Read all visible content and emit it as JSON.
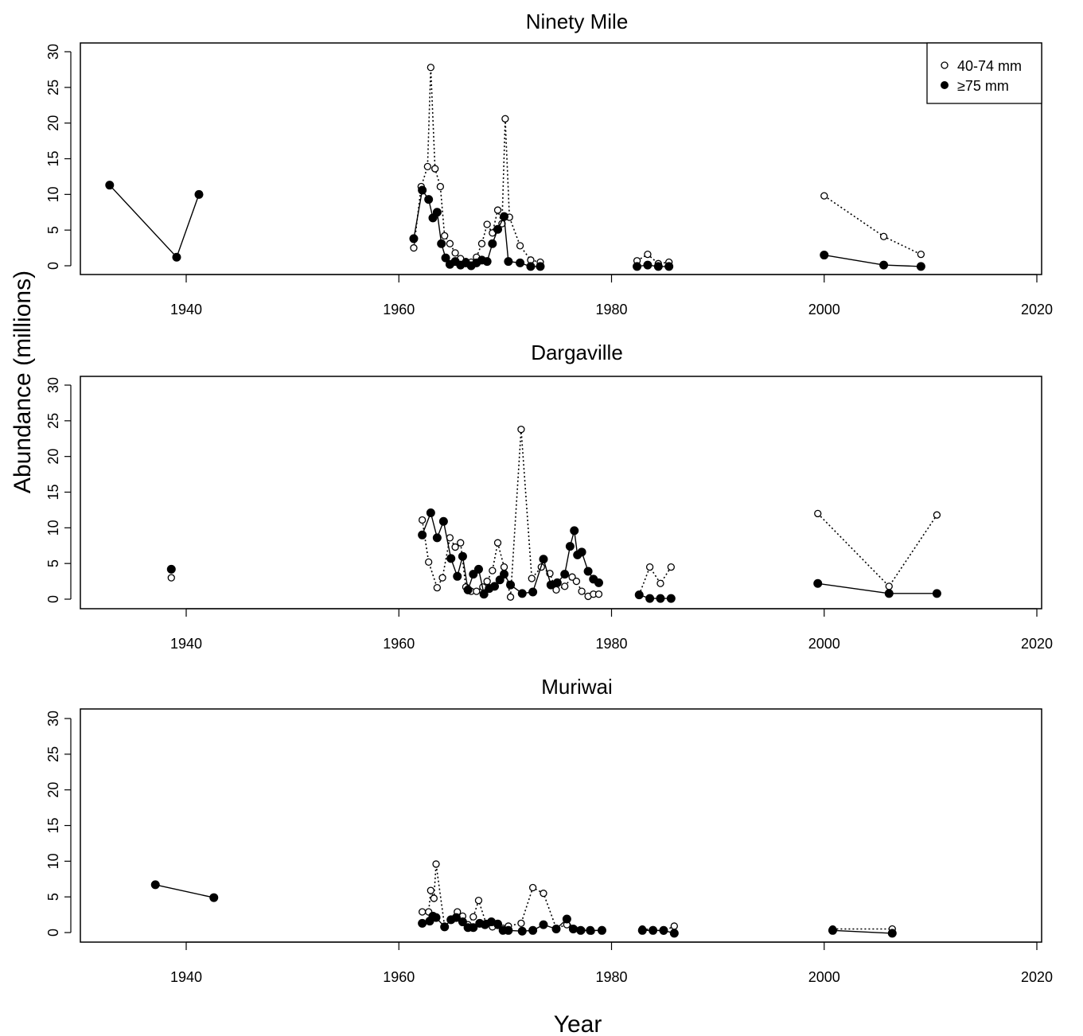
{
  "figure": {
    "xlabel": "Year",
    "ylabel": "Abundance (millions)",
    "legend": {
      "position": "top-right",
      "open_label": "40-74 mm",
      "filled_label": "≥75 mm"
    }
  },
  "chart_data": [
    {
      "type": "line",
      "title": "Ninety Mile",
      "xlim": [
        1930,
        2020
      ],
      "ylim": [
        0,
        30
      ],
      "xticks": [
        1940,
        1960,
        1980,
        2000,
        2020
      ],
      "yticks": [
        0,
        5,
        10,
        15,
        20,
        25,
        30
      ],
      "legend_shown": true,
      "series": [
        {
          "name": "40-74 mm",
          "marker": "open-circle",
          "line": "dotted",
          "segments": [
            [
              [
                1961.4,
                2.5
              ],
              [
                1962.1,
                11.1
              ],
              [
                1962.7,
                13.9
              ],
              [
                1963.0,
                27.8
              ],
              [
                1963.4,
                13.6
              ],
              [
                1963.9,
                11.1
              ],
              [
                1964.3,
                4.2
              ],
              [
                1964.8,
                3.1
              ],
              [
                1965.3,
                1.8
              ],
              [
                1965.8,
                1.0
              ],
              [
                1966.3,
                0.6
              ],
              [
                1966.8,
                0.5
              ],
              [
                1967.3,
                1.2
              ],
              [
                1967.8,
                3.1
              ],
              [
                1968.3,
                5.8
              ],
              [
                1968.8,
                4.6
              ],
              [
                1969.3,
                7.8
              ],
              [
                1969.7,
                5.9
              ],
              [
                1970.0,
                20.6
              ],
              [
                1970.4,
                6.8
              ],
              [
                1971.4,
                2.8
              ],
              [
                1972.4,
                0.8
              ],
              [
                1973.3,
                0.5
              ]
            ],
            [
              [
                1982.4,
                0.7
              ],
              [
                1983.4,
                1.6
              ],
              [
                1984.4,
                0.3
              ],
              [
                1985.4,
                0.5
              ]
            ],
            [
              [
                2000.0,
                9.8
              ],
              [
                2005.6,
                4.1
              ],
              [
                2009.1,
                1.6
              ]
            ]
          ]
        },
        {
          "name": "≥75 mm",
          "marker": "filled-circle",
          "line": "solid",
          "segments": [
            [
              [
                1932.8,
                11.3
              ],
              [
                1939.1,
                1.2
              ],
              [
                1941.2,
                10.0
              ]
            ],
            [
              [
                1961.4,
                3.8
              ],
              [
                1962.2,
                10.6
              ],
              [
                1962.8,
                9.3
              ],
              [
                1963.2,
                6.7
              ],
              [
                1963.6,
                7.5
              ],
              [
                1964.0,
                3.1
              ],
              [
                1964.4,
                1.1
              ],
              [
                1964.8,
                0.2
              ],
              [
                1965.3,
                0.6
              ],
              [
                1965.8,
                0.1
              ],
              [
                1966.3,
                0.4
              ],
              [
                1966.8,
                0.0
              ],
              [
                1967.3,
                0.4
              ],
              [
                1967.8,
                0.8
              ],
              [
                1968.3,
                0.6
              ],
              [
                1968.8,
                3.1
              ],
              [
                1969.3,
                5.1
              ],
              [
                1969.9,
                6.9
              ],
              [
                1970.3,
                0.6
              ],
              [
                1971.4,
                0.4
              ],
              [
                1972.4,
                -0.1
              ],
              [
                1973.3,
                -0.1
              ]
            ],
            [
              [
                1982.4,
                -0.1
              ],
              [
                1983.4,
                0.1
              ],
              [
                1984.4,
                -0.1
              ],
              [
                1985.4,
                -0.1
              ]
            ],
            [
              [
                2000.0,
                1.5
              ],
              [
                2005.6,
                0.1
              ],
              [
                2009.1,
                -0.1
              ]
            ]
          ]
        }
      ]
    },
    {
      "type": "line",
      "title": "Dargaville",
      "xlim": [
        1930,
        2020
      ],
      "ylim": [
        0,
        30
      ],
      "xticks": [
        1940,
        1960,
        1980,
        2000,
        2020
      ],
      "yticks": [
        0,
        5,
        10,
        15,
        20,
        25,
        30
      ],
      "legend_shown": false,
      "series": [
        {
          "name": "40-74 mm",
          "marker": "open-circle",
          "line": "dotted",
          "segments": [
            [
              [
                1938.6,
                3.0
              ]
            ],
            [
              [
                1962.2,
                11.1
              ],
              [
                1962.8,
                5.2
              ],
              [
                1963.6,
                1.6
              ],
              [
                1964.1,
                3.0
              ],
              [
                1964.8,
                8.6
              ],
              [
                1965.3,
                7.3
              ],
              [
                1965.8,
                7.9
              ],
              [
                1966.3,
                1.7
              ],
              [
                1966.8,
                1.1
              ],
              [
                1967.3,
                1.1
              ],
              [
                1967.9,
                1.7
              ],
              [
                1968.3,
                2.5
              ],
              [
                1968.8,
                4.0
              ],
              [
                1969.3,
                7.9
              ],
              [
                1969.9,
                4.5
              ],
              [
                1970.5,
                0.3
              ],
              [
                1971.5,
                23.8
              ],
              [
                1972.5,
                2.9
              ],
              [
                1973.4,
                4.5
              ],
              [
                1974.2,
                3.6
              ],
              [
                1974.8,
                1.3
              ],
              [
                1975.6,
                1.8
              ],
              [
                1976.3,
                3.1
              ],
              [
                1976.7,
                2.5
              ],
              [
                1977.2,
                1.1
              ],
              [
                1977.8,
                0.4
              ],
              [
                1978.3,
                0.7
              ],
              [
                1978.8,
                0.7
              ]
            ],
            [
              [
                1982.6,
                0.6
              ],
              [
                1983.6,
                4.5
              ],
              [
                1984.6,
                2.2
              ],
              [
                1985.6,
                4.5
              ]
            ],
            [
              [
                1999.4,
                12.0
              ],
              [
                2006.1,
                1.8
              ],
              [
                2010.6,
                11.8
              ]
            ]
          ]
        },
        {
          "name": "≥75 mm",
          "marker": "filled-circle",
          "line": "solid",
          "segments": [
            [
              [
                1938.6,
                4.2
              ]
            ],
            [
              [
                1962.2,
                9.0
              ],
              [
                1963.0,
                12.1
              ],
              [
                1963.6,
                8.6
              ],
              [
                1964.2,
                10.9
              ],
              [
                1964.9,
                5.7
              ],
              [
                1965.5,
                3.2
              ],
              [
                1966.0,
                6.0
              ],
              [
                1966.5,
                1.3
              ],
              [
                1967.0,
                3.5
              ],
              [
                1967.5,
                4.2
              ],
              [
                1968.0,
                0.7
              ],
              [
                1968.5,
                1.5
              ],
              [
                1969.0,
                1.8
              ],
              [
                1969.5,
                2.7
              ],
              [
                1969.9,
                3.5
              ],
              [
                1970.5,
                2.0
              ],
              [
                1971.6,
                0.8
              ],
              [
                1972.6,
                1.0
              ],
              [
                1973.6,
                5.6
              ],
              [
                1974.3,
                2.0
              ],
              [
                1974.9,
                2.3
              ],
              [
                1975.6,
                3.5
              ],
              [
                1976.1,
                7.4
              ],
              [
                1976.5,
                9.6
              ],
              [
                1976.8,
                6.2
              ],
              [
                1977.2,
                6.6
              ],
              [
                1977.8,
                3.9
              ],
              [
                1978.3,
                2.8
              ],
              [
                1978.8,
                2.3
              ]
            ],
            [
              [
                1982.6,
                0.6
              ],
              [
                1983.6,
                0.1
              ],
              [
                1984.6,
                0.1
              ],
              [
                1985.6,
                0.1
              ]
            ],
            [
              [
                1999.4,
                2.2
              ],
              [
                2006.1,
                0.8
              ],
              [
                2010.6,
                0.8
              ]
            ]
          ]
        }
      ]
    },
    {
      "type": "line",
      "title": "Muriwai",
      "xlim": [
        1930,
        2020
      ],
      "ylim": [
        0,
        30
      ],
      "xticks": [
        1940,
        1960,
        1980,
        2000,
        2020
      ],
      "yticks": [
        0,
        5,
        10,
        15,
        20,
        25,
        30
      ],
      "legend_shown": false,
      "series": [
        {
          "name": "40-74 mm",
          "marker": "open-circle",
          "line": "dotted",
          "segments": [
            [
              [
                1962.2,
                2.9
              ],
              [
                1962.8,
                2.9
              ],
              [
                1963.0,
                5.9
              ],
              [
                1963.3,
                4.8
              ],
              [
                1963.5,
                9.6
              ],
              [
                1964.3,
                0.9
              ],
              [
                1965.0,
                1.8
              ],
              [
                1965.5,
                2.9
              ],
              [
                1966.0,
                2.3
              ],
              [
                1966.5,
                1.1
              ],
              [
                1967.0,
                2.2
              ],
              [
                1967.5,
                4.5
              ],
              [
                1968.2,
                1.3
              ],
              [
                1968.8,
                0.8
              ],
              [
                1969.3,
                1.0
              ],
              [
                1969.8,
                0.6
              ],
              [
                1970.3,
                0.9
              ],
              [
                1971.5,
                1.3
              ],
              [
                1972.6,
                6.3
              ],
              [
                1973.6,
                5.5
              ],
              [
                1974.8,
                0.6
              ],
              [
                1975.8,
                1.1
              ],
              [
                1976.5,
                0.5
              ],
              [
                1977.2,
                0.3
              ],
              [
                1978.1,
                0.2
              ],
              [
                1979.1,
                0.4
              ]
            ],
            [
              [
                1982.9,
                0.5
              ],
              [
                1983.9,
                0.4
              ],
              [
                1984.9,
                0.2
              ],
              [
                1985.9,
                0.9
              ]
            ],
            [
              [
                2000.8,
                0.5
              ],
              [
                2006.4,
                0.5
              ]
            ]
          ]
        },
        {
          "name": "≥75 mm",
          "marker": "filled-circle",
          "line": "solid",
          "segments": [
            [
              [
                1937.1,
                6.7
              ],
              [
                1942.6,
                4.9
              ]
            ],
            [
              [
                1962.2,
                1.3
              ],
              [
                1962.9,
                1.6
              ],
              [
                1963.2,
                2.3
              ],
              [
                1963.5,
                2.1
              ],
              [
                1964.3,
                0.8
              ],
              [
                1964.9,
                1.8
              ],
              [
                1965.4,
                2.1
              ],
              [
                1966.0,
                1.5
              ],
              [
                1966.5,
                0.7
              ],
              [
                1967.0,
                0.7
              ],
              [
                1967.6,
                1.3
              ],
              [
                1968.1,
                1.1
              ],
              [
                1968.7,
                1.5
              ],
              [
                1969.3,
                1.2
              ],
              [
                1969.8,
                0.3
              ],
              [
                1970.3,
                0.3
              ],
              [
                1971.6,
                0.2
              ],
              [
                1972.6,
                0.3
              ],
              [
                1973.6,
                1.1
              ],
              [
                1974.8,
                0.5
              ],
              [
                1975.8,
                1.9
              ],
              [
                1976.4,
                0.5
              ],
              [
                1977.1,
                0.3
              ],
              [
                1978.0,
                0.3
              ],
              [
                1979.1,
                0.3
              ]
            ],
            [
              [
                1982.9,
                0.3
              ],
              [
                1983.9,
                0.3
              ],
              [
                1984.9,
                0.3
              ],
              [
                1985.9,
                -0.1
              ]
            ],
            [
              [
                2000.8,
                0.3
              ],
              [
                2006.4,
                -0.1
              ]
            ]
          ]
        }
      ]
    }
  ]
}
